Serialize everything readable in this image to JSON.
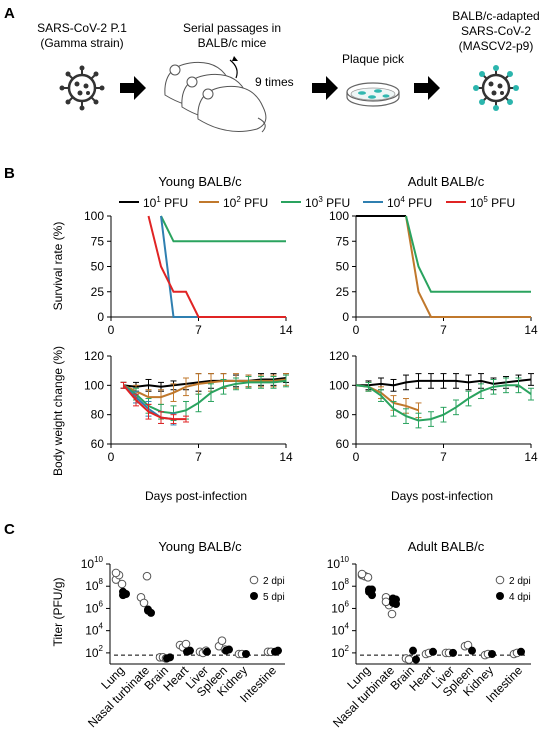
{
  "panel_a": {
    "label": "A",
    "step1": [
      "SARS-CoV-2 P.1",
      "(Gamma strain)"
    ],
    "step2": [
      "Serial passages in",
      "BALB/c mice"
    ],
    "times": "9 times",
    "step3": "Plaque pick",
    "step4": [
      "BALB/c-adapted",
      "SARS-CoV-2",
      "(MASCV2-p9)"
    ]
  },
  "panel_b": {
    "label": "B",
    "titles": [
      "Young BALB/c",
      "Adult BALB/c"
    ],
    "legend": [
      {
        "base": "10",
        "exp": "1",
        "unit": " PFU",
        "color": "#000000"
      },
      {
        "base": "10",
        "exp": "2",
        "unit": " PFU",
        "color": "#c0782c"
      },
      {
        "base": "10",
        "exp": "3",
        "unit": " PFU",
        "color": "#2aa35f"
      },
      {
        "base": "10",
        "exp": "4",
        "unit": " PFU",
        "color": "#2f7fb0"
      },
      {
        "base": "10",
        "exp": "5",
        "unit": " PFU",
        "color": "#e02424"
      }
    ],
    "survival_ylabel": "Survival rate (%)",
    "weight_ylabel": "Body weight change (%)",
    "xlabel": "Days post-infection"
  },
  "panel_c": {
    "label": "C",
    "titles": [
      "Young BALB/c",
      "Adult BALB/c"
    ],
    "ylabel": "Titer (PFU/g)",
    "legend_2dpi": "2 dpi",
    "legend_4dpi": "4 dpi",
    "legend_5dpi": "5 dpi"
  },
  "chart_data": [
    {
      "type": "line",
      "title": "Young BALB/c",
      "ylabel": "Survival rate (%)",
      "x_ticks": [
        0,
        7,
        14
      ],
      "y_ticks": [
        0,
        25,
        50,
        75,
        100
      ],
      "xlim": [
        0,
        14
      ],
      "ylim": [
        0,
        100
      ],
      "series": [
        {
          "name": "10^1 PFU",
          "color": "#000000",
          "points": []
        },
        {
          "name": "10^2 PFU",
          "color": "#c0782c",
          "points": []
        },
        {
          "name": "10^3 PFU",
          "color": "#2aa35f",
          "points": [
            [
              4,
              100
            ],
            [
              5,
              75
            ],
            [
              14,
              75
            ]
          ]
        },
        {
          "name": "10^4 PFU",
          "color": "#2f7fb0",
          "points": [
            [
              4,
              100
            ],
            [
              5,
              0
            ],
            [
              14,
              0
            ]
          ]
        },
        {
          "name": "10^5 PFU",
          "color": "#e02424",
          "points": [
            [
              3,
              100
            ],
            [
              4,
              50
            ],
            [
              5,
              25
            ],
            [
              6,
              25
            ],
            [
              7,
              0
            ],
            [
              14,
              0
            ]
          ]
        }
      ]
    },
    {
      "type": "line",
      "title": "Adult BALB/c",
      "ylabel": "Survival rate (%)",
      "x_ticks": [
        0,
        7,
        14
      ],
      "y_ticks": [
        0,
        25,
        50,
        75,
        100
      ],
      "xlim": [
        0,
        14
      ],
      "ylim": [
        0,
        100
      ],
      "series": [
        {
          "name": "10^1 PFU",
          "color": "#000000",
          "points": [
            [
              0,
              100
            ],
            [
              4,
              100
            ]
          ]
        },
        {
          "name": "10^2 PFU",
          "color": "#c0782c",
          "points": [
            [
              4,
              100
            ],
            [
              5,
              25
            ],
            [
              6,
              0
            ],
            [
              14,
              0
            ]
          ]
        },
        {
          "name": "10^3 PFU",
          "color": "#2aa35f",
          "points": [
            [
              4,
              100
            ],
            [
              5,
              50
            ],
            [
              6,
              25
            ],
            [
              14,
              25
            ]
          ]
        }
      ]
    },
    {
      "type": "line",
      "title": "Young BALB/c",
      "ylabel": "Body weight change (%)",
      "xlabel": "Days post-infection",
      "x_ticks": [
        0,
        7,
        14
      ],
      "y_ticks": [
        60,
        80,
        100,
        120
      ],
      "xlim": [
        0,
        14
      ],
      "ylim": [
        60,
        120
      ],
      "series": [
        {
          "name": "10^1 PFU",
          "color": "#000000",
          "values": [
            null,
            100,
            99,
            100,
            99,
            100,
            101,
            102,
            103,
            103,
            103,
            103,
            104,
            104,
            105
          ],
          "err": [
            0,
            2,
            3,
            4,
            3,
            3,
            4,
            6,
            5,
            5,
            4,
            4,
            4,
            4,
            3
          ]
        },
        {
          "name": "10^2 PFU",
          "color": "#c0782c",
          "values": [
            null,
            100,
            96,
            92,
            92,
            95,
            99,
            101,
            102,
            103,
            103,
            103,
            103,
            103,
            104
          ],
          "err": [
            0,
            2,
            4,
            5,
            5,
            6,
            6,
            7,
            6,
            5,
            5,
            4,
            4,
            4,
            4
          ]
        },
        {
          "name": "10^3 PFU",
          "color": "#2aa35f",
          "values": [
            null,
            100,
            94,
            86,
            82,
            81,
            83,
            88,
            95,
            99,
            101,
            102,
            102,
            102,
            103
          ],
          "err": [
            0,
            2,
            4,
            5,
            5,
            5,
            6,
            6,
            6,
            5,
            4,
            4,
            4,
            4,
            4
          ]
        },
        {
          "name": "10^4 PFU",
          "color": "#2f7fb0",
          "values": [
            null,
            100,
            92,
            84,
            78,
            77,
            null,
            null,
            null,
            null,
            null,
            null,
            null,
            null,
            null
          ],
          "err": [
            0,
            2,
            4,
            5,
            4,
            4,
            0,
            0,
            0,
            0,
            0,
            0,
            0,
            0,
            0
          ]
        },
        {
          "name": "10^5 PFU",
          "color": "#e02424",
          "values": [
            null,
            100,
            90,
            82,
            78,
            77,
            77,
            null,
            null,
            null,
            null,
            null,
            null,
            null,
            null
          ],
          "err": [
            0,
            2,
            4,
            5,
            4,
            3,
            2,
            0,
            0,
            0,
            0,
            0,
            0,
            0,
            0
          ]
        }
      ]
    },
    {
      "type": "line",
      "title": "Adult BALB/c",
      "ylabel": "Body weight change (%)",
      "xlabel": "Days post-infection",
      "x_ticks": [
        0,
        7,
        14
      ],
      "y_ticks": [
        60,
        80,
        100,
        120
      ],
      "xlim": [
        0,
        14
      ],
      "ylim": [
        60,
        120
      ],
      "series": [
        {
          "name": "10^1 PFU",
          "color": "#000000",
          "values": [
            100,
            100,
            101,
            100,
            102,
            103,
            103,
            103,
            103,
            102,
            103,
            101,
            102,
            103,
            104
          ],
          "err": [
            0,
            3,
            4,
            4,
            5,
            5,
            5,
            5,
            5,
            5,
            5,
            4,
            4,
            4,
            4
          ]
        },
        {
          "name": "10^2 PFU",
          "color": "#c0782c",
          "values": [
            100,
            99,
            95,
            88,
            86,
            83,
            null,
            null,
            null,
            null,
            null,
            null,
            null,
            null,
            null
          ],
          "err": [
            0,
            3,
            4,
            5,
            5,
            5,
            0,
            0,
            0,
            0,
            0,
            0,
            0,
            0,
            0
          ]
        },
        {
          "name": "10^3 PFU",
          "color": "#2aa35f",
          "values": [
            100,
            99,
            93,
            84,
            79,
            76,
            77,
            80,
            85,
            91,
            96,
            99,
            100,
            100,
            94
          ],
          "err": [
            0,
            3,
            4,
            5,
            5,
            5,
            5,
            5,
            5,
            5,
            5,
            5,
            5,
            5,
            4
          ]
        }
      ]
    },
    {
      "type": "scatter",
      "title": "Young BALB/c",
      "ylabel": "Titer (PFU/g)",
      "y_scale": "log",
      "ylim": [
        1,
        10
      ],
      "categories": [
        "Lung",
        "Nasal turbinate",
        "Brain",
        "Heart",
        "Liver",
        "Spleen",
        "Kidney",
        "Intestine"
      ],
      "series": [
        {
          "name": "2 dpi",
          "marker": "open",
          "points_log10": [
            [
              8.6,
              9.0,
              8.2,
              9.2
            ],
            [
              7.0,
              6.5,
              8.9
            ],
            [
              1.6,
              1.6,
              1.5
            ],
            [
              2.7,
              2.5,
              2.8
            ],
            [
              2.1,
              2.0,
              2.2
            ],
            [
              2.6,
              3.1,
              2.3
            ],
            [
              1.9,
              1.9
            ],
            [
              2.1,
              2.1
            ]
          ]
        },
        {
          "name": "5 dpi",
          "marker": "filled",
          "points_log10": [
            [
              7.5,
              7.3,
              7.2
            ],
            [
              5.8,
              5.6,
              5.9
            ],
            [
              1.5,
              1.6
            ],
            [
              2.1,
              2.2
            ],
            [
              2.1
            ],
            [
              2.2,
              2.3
            ],
            [
              1.9
            ],
            [
              2.1,
              2.2
            ]
          ]
        }
      ],
      "lod_log10": 1.8
    },
    {
      "type": "scatter",
      "title": "Adult BALB/c",
      "ylabel": "Titer (PFU/g)",
      "y_scale": "log",
      "ylim": [
        1,
        10
      ],
      "categories": [
        "Lung",
        "Nasal turbinate",
        "Brain",
        "Heart",
        "Liver",
        "Spleen",
        "Kidney",
        "Intestine"
      ],
      "series": [
        {
          "name": "2 dpi",
          "marker": "open",
          "points_log10": [
            [
              9.0,
              8.9,
              8.8,
              9.1
            ],
            [
              7.0,
              6.3,
              5.5,
              6.6
            ],
            [
              1.5,
              1.4
            ],
            [
              1.9,
              2.0
            ],
            [
              2.0,
              2.0
            ],
            [
              2.6,
              2.7
            ],
            [
              1.8,
              1.9
            ],
            [
              1.9,
              2.0
            ]
          ]
        },
        {
          "name": "4 dpi",
          "marker": "filled",
          "points_log10": [
            [
              7.7,
              7.2,
              7.5,
              7.7
            ],
            [
              6.5,
              6.8,
              6.9,
              6.4
            ],
            [
              2.2,
              1.4
            ],
            [
              2.1
            ],
            [
              2.0
            ],
            [
              2.2
            ],
            [
              1.9
            ],
            [
              2.1
            ]
          ]
        }
      ],
      "lod_log10": 1.8
    }
  ]
}
